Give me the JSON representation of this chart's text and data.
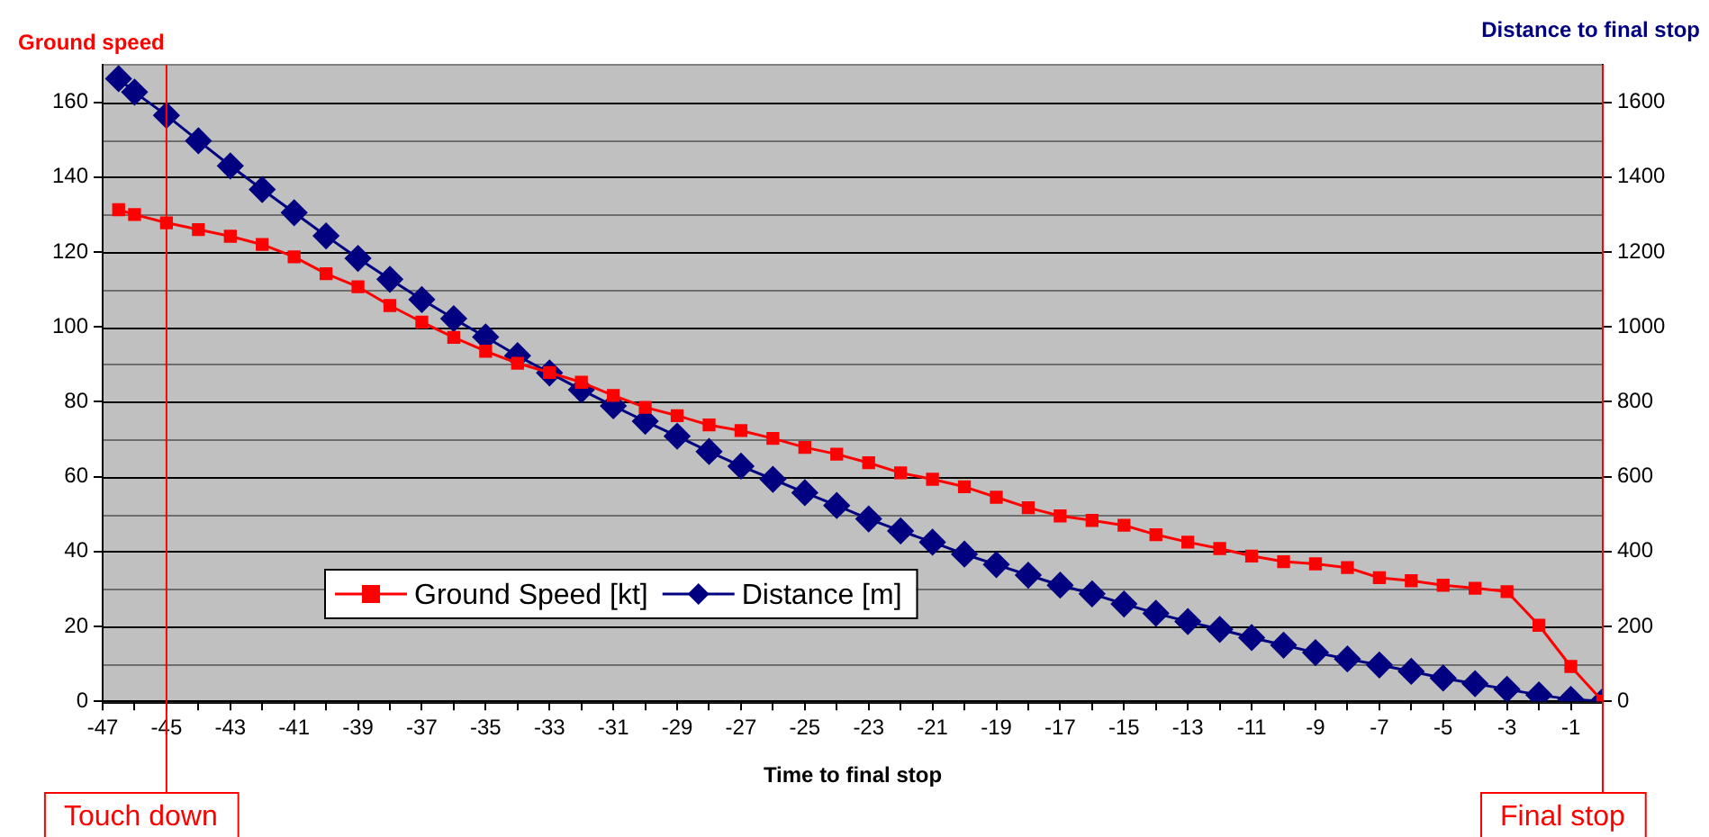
{
  "chart_data": {
    "type": "line",
    "xlabel": "Time to final stop",
    "ylabel": "Ground speed",
    "y2label": "Distance to final stop",
    "x": [
      -46.5,
      -46,
      -45,
      -44,
      -43,
      -42,
      -41,
      -40,
      -39,
      -38,
      -37,
      -36,
      -35,
      -34,
      -33,
      -32,
      -31,
      -30,
      -29,
      -28,
      -27,
      -26,
      -25,
      -24,
      -23,
      -22,
      -21,
      -20,
      -19,
      -18,
      -17,
      -16,
      -15,
      -14,
      -13,
      -12,
      -11,
      -10,
      -9,
      -8,
      -7,
      -6,
      -5,
      -4,
      -3,
      -2,
      -1,
      0
    ],
    "series": [
      {
        "name": "Ground Speed [kt]",
        "color": "#ff0000",
        "marker": "square",
        "values": [
          131.3,
          130,
          127.8,
          126,
          124.2,
          122,
          118.7,
          114.2,
          110.7,
          105.7,
          101.3,
          97.2,
          93.5,
          90.3,
          87.8,
          85.2,
          81.7,
          78.5,
          76.3,
          73.8,
          72.3,
          70.2,
          67.8,
          66,
          63.7,
          61,
          59.3,
          57.3,
          54.5,
          51.7,
          49.5,
          48.3,
          47,
          44.5,
          42.5,
          40.8,
          38.8,
          37.3,
          36.7,
          35.7,
          33,
          32.2,
          31,
          30.2,
          29.3,
          20.3,
          9.3,
          0
        ]
      },
      {
        "name": "Distance [m]",
        "color": "#000080",
        "marker": "diamond",
        "axis": "y2",
        "values": [
          1663,
          1627,
          1565,
          1497,
          1430,
          1367,
          1305,
          1243,
          1183,
          1127,
          1073,
          1022,
          973,
          923,
          877,
          832,
          789,
          748,
          708,
          667,
          628,
          593,
          557,
          523,
          487,
          455,
          425,
          393,
          365,
          337,
          310,
          287,
          260,
          235,
          213,
          192,
          170,
          150,
          130,
          113,
          97,
          80,
          62,
          47,
          32,
          17,
          5,
          0
        ]
      }
    ],
    "xlim": [
      -47,
      0
    ],
    "xticks": [
      -47,
      {
        "value": -46,
        "label": null
      },
      -45,
      {
        "value": -44,
        "label": null
      },
      -43,
      {
        "value": -42,
        "label": null
      },
      -41,
      {
        "value": -40,
        "label": null
      },
      -39,
      {
        "value": -38,
        "label": null
      },
      -37,
      {
        "value": -36,
        "label": null
      },
      -35,
      {
        "value": -34,
        "label": null
      },
      -33,
      {
        "value": -32,
        "label": null
      },
      -31,
      {
        "value": -30,
        "label": null
      },
      -29,
      {
        "value": -28,
        "label": null
      },
      -27,
      {
        "value": -26,
        "label": null
      },
      -25,
      {
        "value": -24,
        "label": null
      },
      -23,
      {
        "value": -22,
        "label": null
      },
      -21,
      {
        "value": -20,
        "label": null
      },
      -19,
      {
        "value": -18,
        "label": null
      },
      -17,
      {
        "value": -16,
        "label": null
      },
      -15,
      {
        "value": -14,
        "label": null
      },
      -13,
      {
        "value": -12,
        "label": null
      },
      -11,
      {
        "value": -10,
        "label": null
      },
      -9,
      {
        "value": -8,
        "label": null
      },
      -7,
      {
        "value": -6,
        "label": null
      },
      -5,
      {
        "value": -4,
        "label": null
      },
      -3,
      {
        "value": -2,
        "label": null
      },
      -1,
      {
        "value": 0,
        "label": null
      }
    ],
    "ylim": [
      0,
      170
    ],
    "yticks": [
      0,
      {
        "value": 10,
        "label": null
      },
      20,
      {
        "value": 30,
        "label": null
      },
      40,
      {
        "value": 50,
        "label": null
      },
      60,
      {
        "value": 70,
        "label": null
      },
      80,
      {
        "value": 90,
        "label": null
      },
      100,
      {
        "value": 110,
        "label": null
      },
      120,
      {
        "value": 130,
        "label": null
      },
      140,
      {
        "value": 150,
        "label": null
      },
      160
    ],
    "y2lim": [
      0,
      1700
    ],
    "y2ticks": [
      0,
      200,
      400,
      600,
      800,
      1000,
      1200,
      1400,
      1600
    ],
    "ref_lines": [
      {
        "axis": "x",
        "value": -45,
        "label": "Touch down",
        "color": "#ff0000"
      },
      {
        "axis": "x",
        "value": 0,
        "label": "Final stop",
        "color": "#ff0000"
      }
    ],
    "grid": "y",
    "legend": "bottom left",
    "line_style": "solid"
  }
}
